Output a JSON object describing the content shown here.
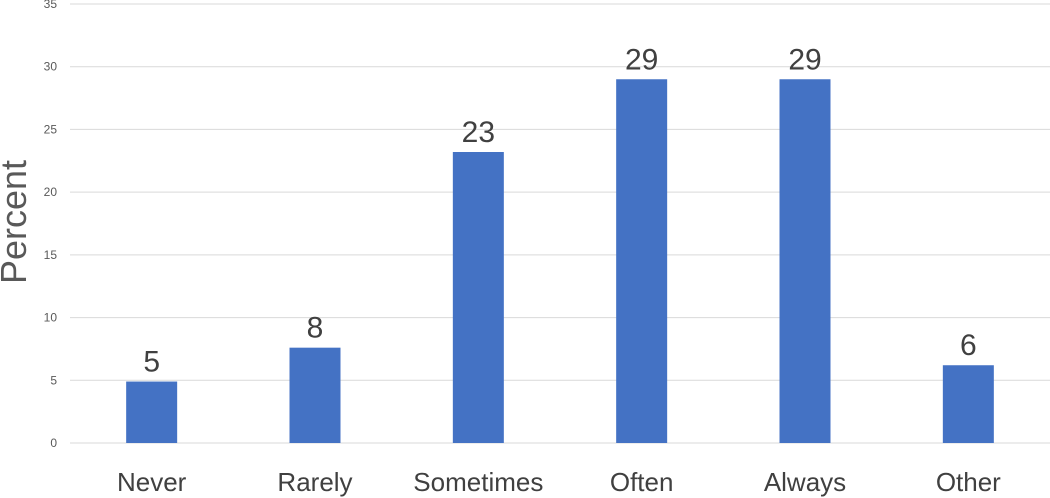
{
  "chart_data": {
    "type": "bar",
    "categories": [
      "Never",
      "Rarely",
      "Sometimes",
      "Often",
      "Always",
      "Other"
    ],
    "values": [
      4.9,
      7.6,
      23.2,
      29.0,
      29.0,
      6.2
    ],
    "data_labels": [
      "5",
      "8",
      "23",
      "29",
      "29",
      "6"
    ],
    "title": "",
    "xlabel": "",
    "ylabel": "Percent",
    "ylim": [
      0,
      35
    ],
    "yticks": [
      0,
      5,
      10,
      15,
      20,
      25,
      30,
      35
    ],
    "grid": true,
    "legend": "none",
    "bar_color": "#4472c4"
  }
}
